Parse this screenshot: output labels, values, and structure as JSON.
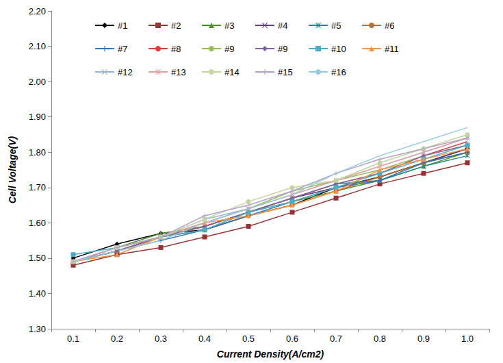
{
  "chart_data": {
    "type": "line",
    "x_label": "Current Density(A/cm2)",
    "y_label": "Cell Voltage(V)",
    "categories": [
      "0.1",
      "0.2",
      "0.3",
      "0.4",
      "0.5",
      "0.6",
      "0.7",
      "0.8",
      "0.9",
      "1.0"
    ],
    "ylim": [
      1.3,
      2.2
    ],
    "yticks": [
      {
        "value": 1.3,
        "label": "1.30"
      },
      {
        "value": 1.4,
        "label": "1.40"
      },
      {
        "value": 1.5,
        "label": "1.50"
      },
      {
        "value": 1.6,
        "label": "1.60"
      },
      {
        "value": 1.7,
        "label": "1.70"
      },
      {
        "value": 1.8,
        "label": "1.80"
      },
      {
        "value": 1.9,
        "label": "1.90"
      },
      {
        "value": 2.0,
        "label": "2.00"
      },
      {
        "value": 2.1,
        "label": "2.10"
      },
      {
        "value": 2.2,
        "label": "2.20"
      }
    ],
    "grid": false,
    "legend": "upper left",
    "series": [
      {
        "name": "#1",
        "color": "#000000",
        "marker": "diamond",
        "line_style": "solid",
        "values": [
          1.5,
          1.54,
          1.57,
          1.58,
          1.62,
          1.65,
          1.7,
          1.73,
          1.77,
          1.81
        ]
      },
      {
        "name": "#2",
        "color": "#993333",
        "marker": "square",
        "line_style": "solid",
        "values": [
          1.48,
          1.51,
          1.53,
          1.56,
          1.59,
          1.63,
          1.67,
          1.71,
          1.74,
          1.77
        ]
      },
      {
        "name": "#3",
        "color": "#4e8f2f",
        "marker": "triangle",
        "line_style": "solid",
        "values": [
          1.49,
          1.53,
          1.57,
          1.59,
          1.63,
          1.66,
          1.69,
          1.72,
          1.76,
          1.8
        ]
      },
      {
        "name": "#4",
        "color": "#5b3f7a",
        "marker": "x",
        "line_style": "solid",
        "values": [
          1.49,
          1.52,
          1.56,
          1.59,
          1.63,
          1.67,
          1.7,
          1.73,
          1.77,
          1.81
        ]
      },
      {
        "name": "#5",
        "color": "#1f8a8a",
        "marker": "star",
        "line_style": "solid",
        "values": [
          1.49,
          1.52,
          1.56,
          1.58,
          1.63,
          1.67,
          1.71,
          1.72,
          1.76,
          1.79
        ]
      },
      {
        "name": "#6",
        "color": "#c86a22",
        "marker": "circle",
        "line_style": "solid",
        "values": [
          1.49,
          1.52,
          1.56,
          1.58,
          1.62,
          1.65,
          1.69,
          1.73,
          1.77,
          1.8
        ]
      },
      {
        "name": "#7",
        "color": "#2e75b6",
        "marker": "plus",
        "line_style": "solid",
        "values": [
          1.49,
          1.52,
          1.55,
          1.58,
          1.62,
          1.66,
          1.7,
          1.72,
          1.77,
          1.8
        ]
      },
      {
        "name": "#8",
        "color": "#e0393e",
        "marker": "none",
        "line_style": "solid",
        "values": [
          1.49,
          1.52,
          1.56,
          1.59,
          1.63,
          1.67,
          1.71,
          1.74,
          1.79,
          1.83
        ]
      },
      {
        "name": "#9",
        "color": "#9bbb59",
        "marker": "none",
        "line_style": "solid",
        "values": [
          1.49,
          1.53,
          1.56,
          1.6,
          1.64,
          1.69,
          1.72,
          1.75,
          1.79,
          1.82
        ]
      },
      {
        "name": "#9",
        "color": "#8064a2",
        "marker": "diamond",
        "line_style": "solid",
        "values": [
          1.49,
          1.52,
          1.56,
          1.59,
          1.63,
          1.67,
          1.71,
          1.74,
          1.79,
          1.82
        ]
      },
      {
        "name": "#10",
        "color": "#4bacc6",
        "marker": "square",
        "line_style": "solid",
        "values": [
          1.51,
          1.53,
          1.56,
          1.58,
          1.63,
          1.66,
          1.7,
          1.74,
          1.78,
          1.82
        ]
      },
      {
        "name": "#11",
        "color": "#f79646",
        "marker": "triangle",
        "line_style": "solid",
        "values": [
          1.49,
          1.51,
          1.56,
          1.6,
          1.62,
          1.65,
          1.69,
          1.75,
          1.78,
          1.81
        ]
      },
      {
        "name": "#12",
        "color": "#95b3d7",
        "marker": "x",
        "line_style": "solid",
        "values": [
          1.49,
          1.53,
          1.56,
          1.61,
          1.64,
          1.68,
          1.72,
          1.76,
          1.8,
          1.84
        ]
      },
      {
        "name": "#13",
        "color": "#e6a0a0",
        "marker": "star",
        "line_style": "solid",
        "values": [
          1.49,
          1.53,
          1.56,
          1.6,
          1.64,
          1.68,
          1.72,
          1.76,
          1.8,
          1.84
        ]
      },
      {
        "name": "#14",
        "color": "#c3d69b",
        "marker": "circle",
        "line_style": "solid",
        "values": [
          1.49,
          1.53,
          1.56,
          1.61,
          1.66,
          1.7,
          1.72,
          1.77,
          1.81,
          1.85
        ]
      },
      {
        "name": "#15",
        "color": "#b3a2c7",
        "marker": "plus",
        "line_style": "solid",
        "values": [
          1.49,
          1.53,
          1.56,
          1.62,
          1.65,
          1.69,
          1.74,
          1.78,
          1.81,
          1.84
        ]
      },
      {
        "name": "#16",
        "color": "#93cddd",
        "marker": "none",
        "line_style": "solid",
        "values": [
          1.49,
          1.52,
          1.55,
          1.6,
          1.64,
          1.68,
          1.74,
          1.79,
          1.83,
          1.87
        ]
      }
    ]
  }
}
